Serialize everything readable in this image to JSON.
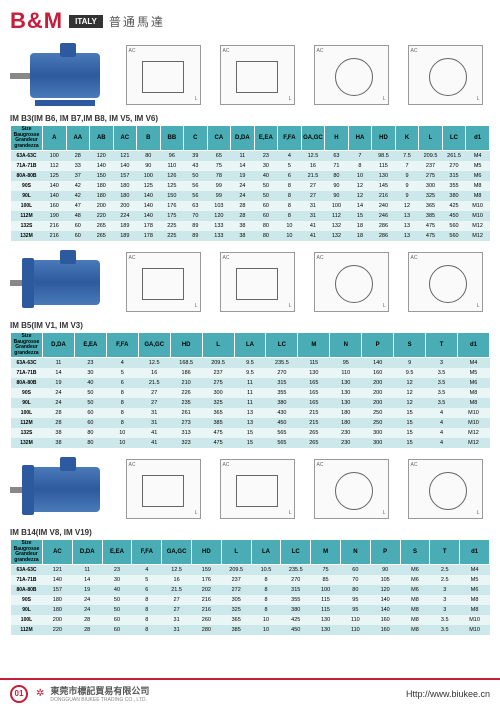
{
  "brand": "B&M",
  "italy": "ITALY",
  "subtitle": "普通馬達",
  "footer": {
    "page": "01",
    "company_cn": "東莞市標記貿易有限公司",
    "company_en": "DONGGUAN BIUKEE TRADING CO., LTD.",
    "url": "Http://www.biukee.cn"
  },
  "colors": {
    "header_bg": "#4aadb5",
    "row_even": "#cce8ea",
    "row_odd": "#eaf5f6"
  },
  "size_header": "Size\nBaugrosse\nGrandeur\ngrandezza",
  "sections": [
    {
      "title": "IM B3(IM B6, IM B7,IM B8, IM V5, IM V6)",
      "motor_type": "foot",
      "headers": [
        "A",
        "AA",
        "AB",
        "AC",
        "B",
        "BB",
        "C",
        "CA",
        "D,DA",
        "E,EA",
        "F,FA",
        "GA,GC",
        "H",
        "HA",
        "HD",
        "K",
        "L",
        "LC",
        "d1"
      ],
      "rows": [
        [
          "63A-63C",
          "100",
          "28",
          "120",
          "121",
          "80",
          "96",
          "39",
          "65",
          "11",
          "23",
          "4",
          "12.5",
          "63",
          "7",
          "98.5",
          "7.5",
          "209.5",
          "261.5",
          "M4"
        ],
        [
          "71A-71B",
          "112",
          "33",
          "140",
          "140",
          "90",
          "110",
          "43",
          "75",
          "14",
          "30",
          "5",
          "16",
          "71",
          "8",
          "115",
          "7",
          "237",
          "270",
          "M5"
        ],
        [
          "80A-80B",
          "125",
          "37",
          "150",
          "157",
          "100",
          "126",
          "50",
          "78",
          "19",
          "40",
          "6",
          "21.5",
          "80",
          "10",
          "130",
          "9",
          "275",
          "315",
          "M6"
        ],
        [
          "90S",
          "140",
          "42",
          "180",
          "180",
          "125",
          "125",
          "56",
          "99",
          "24",
          "50",
          "8",
          "27",
          "90",
          "12",
          "145",
          "9",
          "300",
          "355",
          "M8"
        ],
        [
          "90L",
          "140",
          "42",
          "180",
          "180",
          "140",
          "150",
          "56",
          "99",
          "24",
          "50",
          "8",
          "27",
          "90",
          "12",
          "216",
          "9",
          "325",
          "380",
          "M8"
        ],
        [
          "100L",
          "160",
          "47",
          "200",
          "200",
          "140",
          "176",
          "63",
          "103",
          "28",
          "60",
          "8",
          "31",
          "100",
          "14",
          "240",
          "12",
          "365",
          "425",
          "M10"
        ],
        [
          "112M",
          "190",
          "48",
          "220",
          "224",
          "140",
          "175",
          "70",
          "120",
          "28",
          "60",
          "8",
          "31",
          "112",
          "15",
          "246",
          "13",
          "385",
          "450",
          "M10"
        ],
        [
          "132S",
          "216",
          "60",
          "265",
          "189",
          "178",
          "225",
          "89",
          "133",
          "38",
          "80",
          "10",
          "41",
          "132",
          "18",
          "286",
          "13",
          "475",
          "560",
          "M12"
        ],
        [
          "132M",
          "216",
          "60",
          "265",
          "189",
          "178",
          "225",
          "89",
          "133",
          "38",
          "80",
          "10",
          "41",
          "132",
          "18",
          "286",
          "13",
          "475",
          "560",
          "M12"
        ]
      ]
    },
    {
      "title": "IM B5(IM V1, IM V3)",
      "motor_type": "flange",
      "headers": [
        "D,DA",
        "E,EA",
        "F,FA",
        "GA,GC",
        "HD",
        "L",
        "LA",
        "LC",
        "M",
        "N",
        "P",
        "S",
        "T",
        "d1"
      ],
      "rows": [
        [
          "63A-63C",
          "11",
          "23",
          "4",
          "12.5",
          "168.5",
          "209.5",
          "9.5",
          "235.5",
          "115",
          "95",
          "140",
          "9",
          "3",
          "M4"
        ],
        [
          "71A-71B",
          "14",
          "30",
          "5",
          "16",
          "186",
          "237",
          "9.5",
          "270",
          "130",
          "110",
          "160",
          "9.5",
          "3.5",
          "M5"
        ],
        [
          "80A-80B",
          "19",
          "40",
          "6",
          "21.5",
          "210",
          "275",
          "11",
          "315",
          "165",
          "130",
          "200",
          "12",
          "3.5",
          "M6"
        ],
        [
          "90S",
          "24",
          "50",
          "8",
          "27",
          "226",
          "300",
          "11",
          "355",
          "165",
          "130",
          "200",
          "12",
          "3.5",
          "M8"
        ],
        [
          "90L",
          "24",
          "50",
          "8",
          "27",
          "235",
          "325",
          "11",
          "380",
          "165",
          "130",
          "200",
          "12",
          "3.5",
          "M8"
        ],
        [
          "100L",
          "28",
          "60",
          "8",
          "31",
          "261",
          "365",
          "13",
          "430",
          "215",
          "180",
          "250",
          "15",
          "4",
          "M10"
        ],
        [
          "112M",
          "28",
          "60",
          "8",
          "31",
          "273",
          "385",
          "13",
          "450",
          "215",
          "180",
          "250",
          "15",
          "4",
          "M10"
        ],
        [
          "132S",
          "38",
          "80",
          "10",
          "41",
          "313",
          "475",
          "15",
          "565",
          "265",
          "230",
          "300",
          "15",
          "4",
          "M12"
        ],
        [
          "132M",
          "38",
          "80",
          "10",
          "41",
          "323",
          "475",
          "15",
          "565",
          "265",
          "230",
          "300",
          "15",
          "4",
          "M12"
        ]
      ]
    },
    {
      "title": "IM B14(IM V8, IM V19)",
      "motor_type": "face",
      "headers": [
        "AC",
        "D,DA",
        "E,EA",
        "F,FA",
        "GA,GC",
        "HD",
        "L",
        "LA",
        "LC",
        "M",
        "N",
        "P",
        "S",
        "T",
        "d1"
      ],
      "rows": [
        [
          "63A-63C",
          "121",
          "11",
          "23",
          "4",
          "12.5",
          "159",
          "209.5",
          "10.5",
          "235.5",
          "75",
          "60",
          "90",
          "M6",
          "2.5",
          "M4"
        ],
        [
          "71A-71B",
          "140",
          "14",
          "30",
          "5",
          "16",
          "176",
          "237",
          "8",
          "270",
          "85",
          "70",
          "105",
          "M6",
          "2.5",
          "M5"
        ],
        [
          "80A-80B",
          "157",
          "19",
          "40",
          "6",
          "21.5",
          "202",
          "272",
          "8",
          "315",
          "100",
          "80",
          "120",
          "M6",
          "3",
          "M6"
        ],
        [
          "90S",
          "180",
          "24",
          "50",
          "8",
          "27",
          "216",
          "305",
          "8",
          "355",
          "115",
          "95",
          "140",
          "M8",
          "3",
          "M8"
        ],
        [
          "90L",
          "180",
          "24",
          "50",
          "8",
          "27",
          "216",
          "325",
          "8",
          "380",
          "115",
          "95",
          "140",
          "M8",
          "3",
          "M8"
        ],
        [
          "100L",
          "200",
          "28",
          "60",
          "8",
          "31",
          "260",
          "365",
          "10",
          "425",
          "130",
          "110",
          "160",
          "M8",
          "3.5",
          "M10"
        ],
        [
          "112M",
          "220",
          "28",
          "60",
          "8",
          "31",
          "280",
          "385",
          "10",
          "450",
          "130",
          "110",
          "160",
          "M8",
          "3.5",
          "M10"
        ]
      ]
    }
  ]
}
